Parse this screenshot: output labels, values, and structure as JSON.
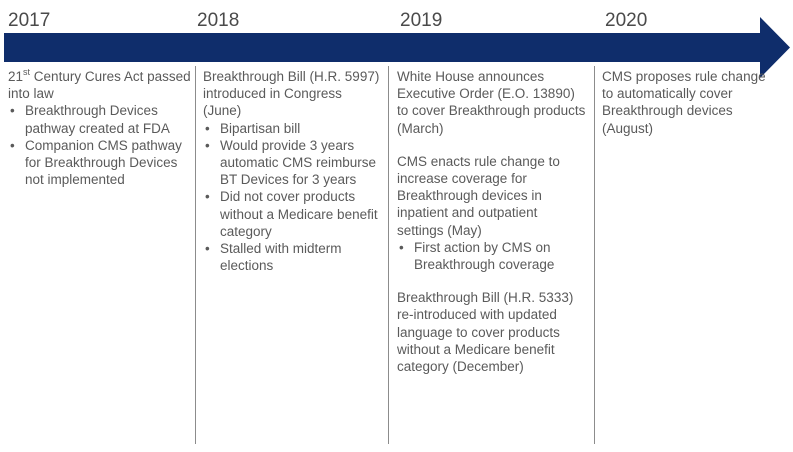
{
  "timeline": {
    "years": [
      "2017",
      "2018",
      "2019",
      "2020"
    ],
    "arrow_color": "#0f2d6b"
  },
  "col2017": {
    "intro_prefix": "21",
    "intro_sup": "st",
    "intro_rest": " Century Cures Act passed into law",
    "bullets": [
      "Breakthrough Devices pathway created at FDA",
      "Companion CMS pathway for Breakthrough Devices not implemented"
    ]
  },
  "col2018": {
    "intro": "Breakthrough Bill (H.R. 5997) introduced in Congress (June)",
    "bullets": [
      "Bipartisan bill",
      "Would provide 3 years automatic CMS reimburse BT Devices for 3 years",
      "Did not cover products without a Medicare benefit category",
      "Stalled with midterm elections"
    ]
  },
  "col2019": {
    "para1": "White House announces Executive Order (E.O. 13890) to cover Breakthrough products (March)",
    "para2": "CMS enacts rule change to increase coverage for Breakthrough devices in inpatient and outpatient settings (May)",
    "bullets": [
      "First action by CMS on Breakthrough coverage"
    ],
    "para3": "Breakthrough Bill (H.R. 5333) re-introduced with updated language to cover products without a Medicare benefit category (December)"
  },
  "col2020": {
    "para1": "CMS proposes rule change to automatically cover Breakthrough devices (August)"
  }
}
